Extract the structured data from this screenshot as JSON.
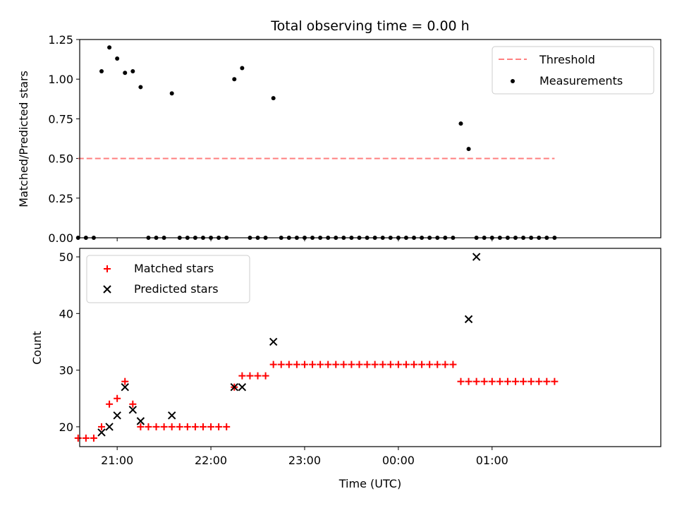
{
  "figure": {
    "title": "Total observing time = 0.00 h",
    "xlabel": "Time (UTC)"
  },
  "chart_data": [
    {
      "type": "scatter",
      "panel": "top",
      "ylabel": "Matched/Predicted stars",
      "ylim": [
        0,
        1.25
      ],
      "yticks": [
        "0.00",
        "0.25",
        "0.50",
        "0.75",
        "1.00",
        "1.25"
      ],
      "legend_position": "top-right",
      "series": [
        {
          "name": "Threshold",
          "kind": "dashed-line",
          "color": "#ff8080",
          "x": [
            "20:35",
            "01:40"
          ],
          "y": [
            0.5,
            0.5
          ]
        },
        {
          "name": "Measurements",
          "kind": "dot",
          "color": "#000000",
          "x": [
            "20:35",
            "20:40",
            "20:45",
            "20:50",
            "20:55",
            "21:00",
            "21:05",
            "21:10",
            "21:15",
            "21:20",
            "21:25",
            "21:30",
            "21:35",
            "21:40",
            "21:45",
            "21:50",
            "21:55",
            "22:00",
            "22:05",
            "22:10",
            "22:15",
            "22:20",
            "22:25",
            "22:30",
            "22:35",
            "22:40",
            "22:45",
            "22:50",
            "22:55",
            "23:00",
            "23:05",
            "23:10",
            "23:15",
            "23:20",
            "23:25",
            "23:30",
            "23:35",
            "23:40",
            "23:45",
            "23:50",
            "23:55",
            "00:00",
            "00:05",
            "00:10",
            "00:15",
            "00:20",
            "00:25",
            "00:30",
            "00:35",
            "00:40",
            "00:45",
            "00:50",
            "00:55",
            "01:00",
            "01:05",
            "01:10",
            "01:15",
            "01:20",
            "01:25",
            "01:30",
            "01:35",
            "01:40"
          ],
          "y": [
            0,
            0,
            0,
            1.05,
            1.2,
            1.13,
            1.04,
            1.05,
            0.95,
            0,
            0,
            0,
            0.91,
            0,
            0,
            0,
            0,
            0,
            0,
            0,
            1.0,
            1.07,
            0,
            0,
            0,
            0.88,
            0,
            0,
            0,
            0,
            0,
            0,
            0,
            0,
            0,
            0,
            0,
            0,
            0,
            0,
            0,
            0,
            0,
            0,
            0,
            0,
            0,
            0,
            0,
            0.72,
            0.56,
            0,
            0,
            0,
            0,
            0,
            0,
            0,
            0,
            0,
            0,
            0
          ]
        }
      ]
    },
    {
      "type": "scatter",
      "panel": "bottom",
      "ylabel": "Count",
      "xlabel": "Time (UTC)",
      "xticks": [
        "21:00",
        "22:00",
        "23:00",
        "00:00",
        "01:00"
      ],
      "ylim": [
        16.5,
        51.5
      ],
      "yticks": [
        "20",
        "30",
        "40",
        "50"
      ],
      "legend_position": "top-left",
      "series": [
        {
          "name": "Matched stars",
          "marker": "plus",
          "color": "#ff0000",
          "x": [
            "20:35",
            "20:40",
            "20:45",
            "20:50",
            "20:55",
            "21:00",
            "21:05",
            "21:10",
            "21:15",
            "21:20",
            "21:25",
            "21:30",
            "21:35",
            "21:40",
            "21:45",
            "21:50",
            "21:55",
            "22:00",
            "22:05",
            "22:10",
            "22:15",
            "22:20",
            "22:25",
            "22:30",
            "22:35",
            "22:40",
            "22:45",
            "22:50",
            "22:55",
            "23:00",
            "23:05",
            "23:10",
            "23:15",
            "23:20",
            "23:25",
            "23:30",
            "23:35",
            "23:40",
            "23:45",
            "23:50",
            "23:55",
            "00:00",
            "00:05",
            "00:10",
            "00:15",
            "00:20",
            "00:25",
            "00:30",
            "00:35",
            "00:40",
            "00:45",
            "00:50",
            "00:55",
            "01:00",
            "01:05",
            "01:10",
            "01:15",
            "01:20",
            "01:25",
            "01:30",
            "01:35",
            "01:40"
          ],
          "y": [
            18,
            18,
            18,
            20,
            24,
            25,
            28,
            24,
            20,
            20,
            20,
            20,
            20,
            20,
            20,
            20,
            20,
            20,
            20,
            20,
            27,
            29,
            29,
            29,
            29,
            31,
            31,
            31,
            31,
            31,
            31,
            31,
            31,
            31,
            31,
            31,
            31,
            31,
            31,
            31,
            31,
            31,
            31,
            31,
            31,
            31,
            31,
            31,
            31,
            28,
            28,
            28,
            28,
            28,
            28,
            28,
            28,
            28,
            28,
            28,
            28,
            28
          ]
        },
        {
          "name": "Predicted stars",
          "marker": "x",
          "color": "#000000",
          "x": [
            "20:50",
            "20:55",
            "21:00",
            "21:05",
            "21:10",
            "21:15",
            "21:35",
            "22:15",
            "22:20",
            "22:40",
            "00:45",
            "00:50"
          ],
          "y": [
            19,
            20,
            22,
            27,
            23,
            21,
            22,
            27,
            27,
            35,
            39,
            50
          ]
        }
      ]
    }
  ]
}
